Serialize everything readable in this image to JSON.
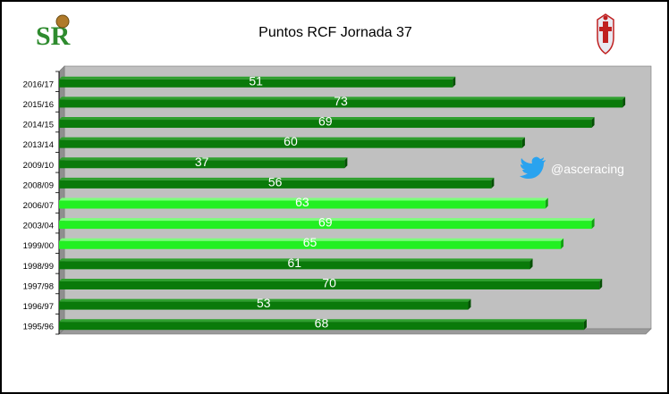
{
  "header": {
    "title": "Puntos RCF Jornada 37",
    "logo_left_text": "SR",
    "logo_left_icon": "club-monogram-logo",
    "logo_right_icon": "club-crest-icon"
  },
  "social": {
    "icon": "twitter-bird-icon",
    "handle": "@asceracing"
  },
  "colors": {
    "plot_bg": "#c0c0c0",
    "bar_dark": "#0a7a0a",
    "bar_highlight": "#22f022",
    "label_color": "#ffffff"
  },
  "chart_data": {
    "type": "bar",
    "orientation": "horizontal",
    "title": "Puntos RCF Jornada 37",
    "categories": [
      "2016/17",
      "2015/16",
      "2014/15",
      "2013/14",
      "2009/10",
      "2008/09",
      "2006/07",
      "2003/04",
      "1999/00",
      "1998/99",
      "1997/98",
      "1996/97",
      "1995/96"
    ],
    "values": [
      51,
      73,
      69,
      60,
      37,
      56,
      63,
      69,
      65,
      61,
      70,
      53,
      68
    ],
    "highlighted": [
      false,
      false,
      false,
      false,
      false,
      false,
      true,
      true,
      true,
      false,
      false,
      false,
      false
    ],
    "xlim": [
      0,
      76
    ],
    "grid": false,
    "xlabel": "",
    "ylabel": ""
  }
}
